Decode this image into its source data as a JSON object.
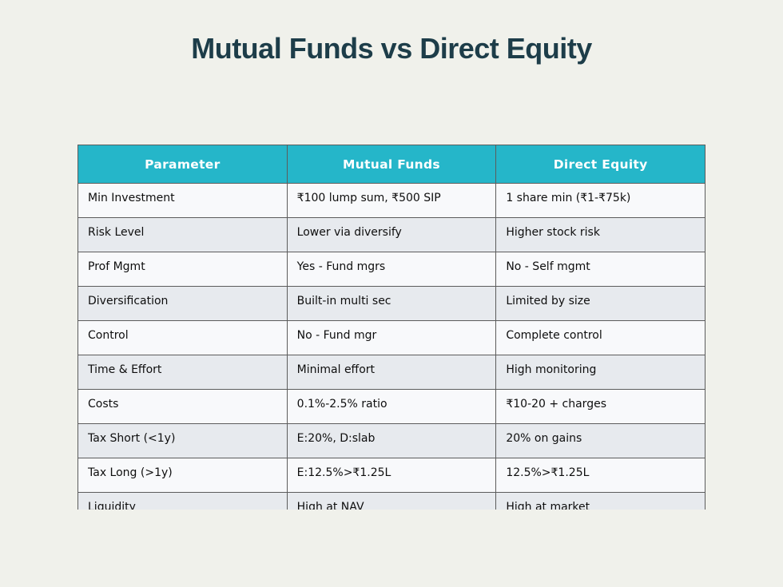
{
  "page": {
    "title": "Mutual Funds vs Direct Equity"
  },
  "table": {
    "headers": [
      "Parameter",
      "Mutual Funds",
      "Direct Equity"
    ],
    "rows": [
      [
        "Min Investment",
        "₹100 lump sum, ₹500 SIP",
        "1 share min (₹1-₹75k)"
      ],
      [
        "Risk Level",
        "Lower via diversify",
        "Higher stock risk"
      ],
      [
        "Prof Mgmt",
        "Yes - Fund mgrs",
        "No - Self mgmt"
      ],
      [
        "Diversification",
        "Built-in multi sec",
        "Limited by size"
      ],
      [
        "Control",
        "No - Fund mgr",
        "Complete control"
      ],
      [
        "Time & Effort",
        "Minimal effort",
        "High monitoring"
      ],
      [
        "Costs",
        "0.1%-2.5% ratio",
        "₹10-20 + charges"
      ],
      [
        "Tax Short (<1y)",
        "E:20%, D:slab",
        "20% on gains"
      ],
      [
        "Tax Long (>1y)",
        "E:12.5%>₹1.25L",
        "12.5%>₹1.25L"
      ],
      [
        "Liquidity",
        "High at NAV",
        "High at market"
      ]
    ]
  },
  "colors": {
    "background": "#f0f1eb",
    "title_text": "#1d3d49",
    "header_background": "#25b6c9",
    "header_text": "#ffffff",
    "row_white": "#f8f9fb",
    "row_gray": "#e7eaee",
    "border": "#5c5c5c"
  }
}
